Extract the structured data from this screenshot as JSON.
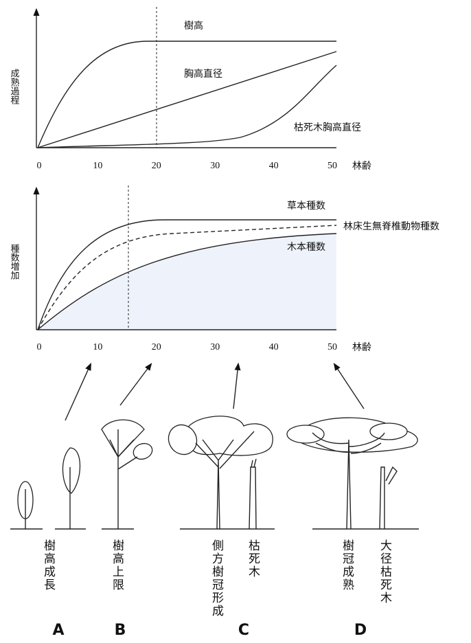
{
  "top_chart": {
    "y_label": "成熟過程",
    "x_label": "林齢",
    "x_ticks": [
      0,
      10,
      20,
      30,
      40,
      50
    ],
    "curve_labels": [
      "樹高",
      "胸高直径",
      "枯死木胸高直径"
    ]
  },
  "bottom_chart": {
    "y_label": "種数増加",
    "x_label": "林齢",
    "x_ticks": [
      0,
      10,
      20,
      30,
      40,
      50
    ],
    "curve_labels": [
      "草本種数",
      "林床生無脊椎動物種数",
      "木本種数"
    ]
  },
  "stages": [
    {
      "id": "A",
      "labels": [
        "樹高成長"
      ]
    },
    {
      "id": "B",
      "labels": [
        "樹高上限"
      ]
    },
    {
      "id": "C",
      "labels": [
        "側方樹冠形成",
        "枯死木"
      ]
    },
    {
      "id": "D",
      "labels": [
        "樹冠成熟",
        "大径枯死木"
      ]
    }
  ]
}
